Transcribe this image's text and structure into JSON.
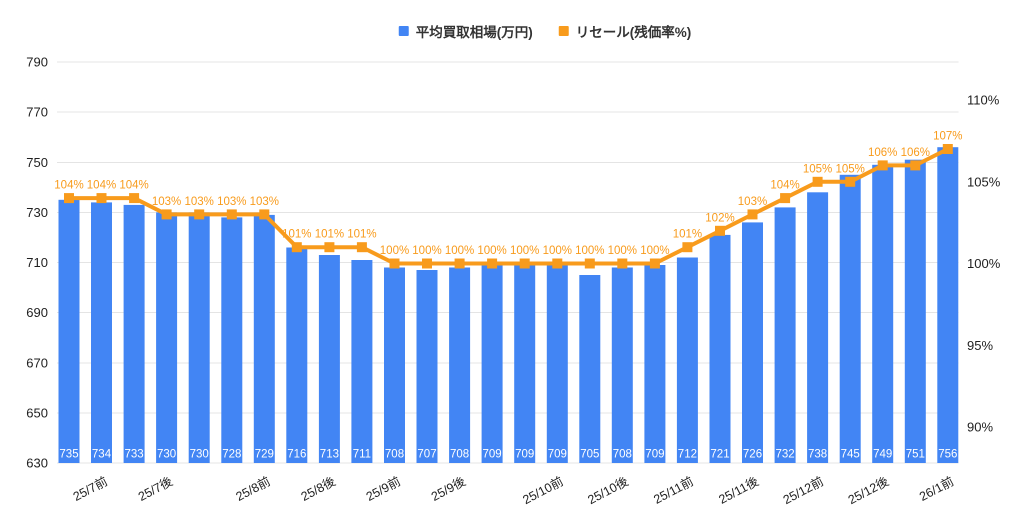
{
  "legend": {
    "items": [
      {
        "label": "平均買取相場(万円)",
        "color": "#4285F4"
      },
      {
        "label": "リセール(残価率%)",
        "color": "#F89B1C"
      }
    ]
  },
  "chart_data": {
    "type": "bar",
    "subtype": "combo-bar-line",
    "background": "#ffffff",
    "grid": true,
    "grid_color": "#E4E4E4",
    "legend_position": "top",
    "x_tick_labels": [
      "25/7前",
      "25/7後",
      "25/8前",
      "25/8後",
      "25/9前",
      "25/9後",
      "25/10前",
      "25/10後",
      "25/11前",
      "25/11後",
      "25/12前",
      "25/12後",
      "26/1前"
    ],
    "x_tick_bar_index": [
      2,
      4,
      7,
      9,
      11,
      13,
      16,
      18,
      20,
      22,
      24,
      26,
      28
    ],
    "series": [
      {
        "name": "平均買取相場(万円)",
        "type": "bar",
        "axis": "left",
        "color": "#4285F4",
        "label_color": "#ffffff",
        "values": [
          735,
          734,
          733,
          730,
          730,
          728,
          729,
          716,
          713,
          711,
          708,
          707,
          708,
          709,
          709,
          709,
          705,
          708,
          709,
          712,
          721,
          726,
          732,
          738,
          745,
          749,
          751,
          756
        ]
      },
      {
        "name": "リセール(残価率%)",
        "type": "line",
        "axis": "right",
        "color": "#F89B1C",
        "marker": "square",
        "label_suffix": "%",
        "values": [
          104,
          104,
          104,
          103,
          103,
          103,
          103,
          101,
          101,
          101,
          100,
          100,
          100,
          100,
          100,
          100,
          100,
          100,
          100,
          101,
          102,
          103,
          104,
          105,
          105,
          106,
          106,
          107
        ]
      }
    ],
    "left_axis": {
      "min": 630,
      "max": 790,
      "step": 20,
      "ticks": [
        630,
        650,
        670,
        690,
        710,
        730,
        750,
        770,
        790
      ]
    },
    "right_axis": {
      "min": 90,
      "max": 110,
      "step": 5,
      "ticks": [
        "110%",
        "105%",
        "100%",
        "95%",
        "90%"
      ],
      "tick_values": [
        110,
        105,
        100,
        95,
        90
      ]
    }
  }
}
